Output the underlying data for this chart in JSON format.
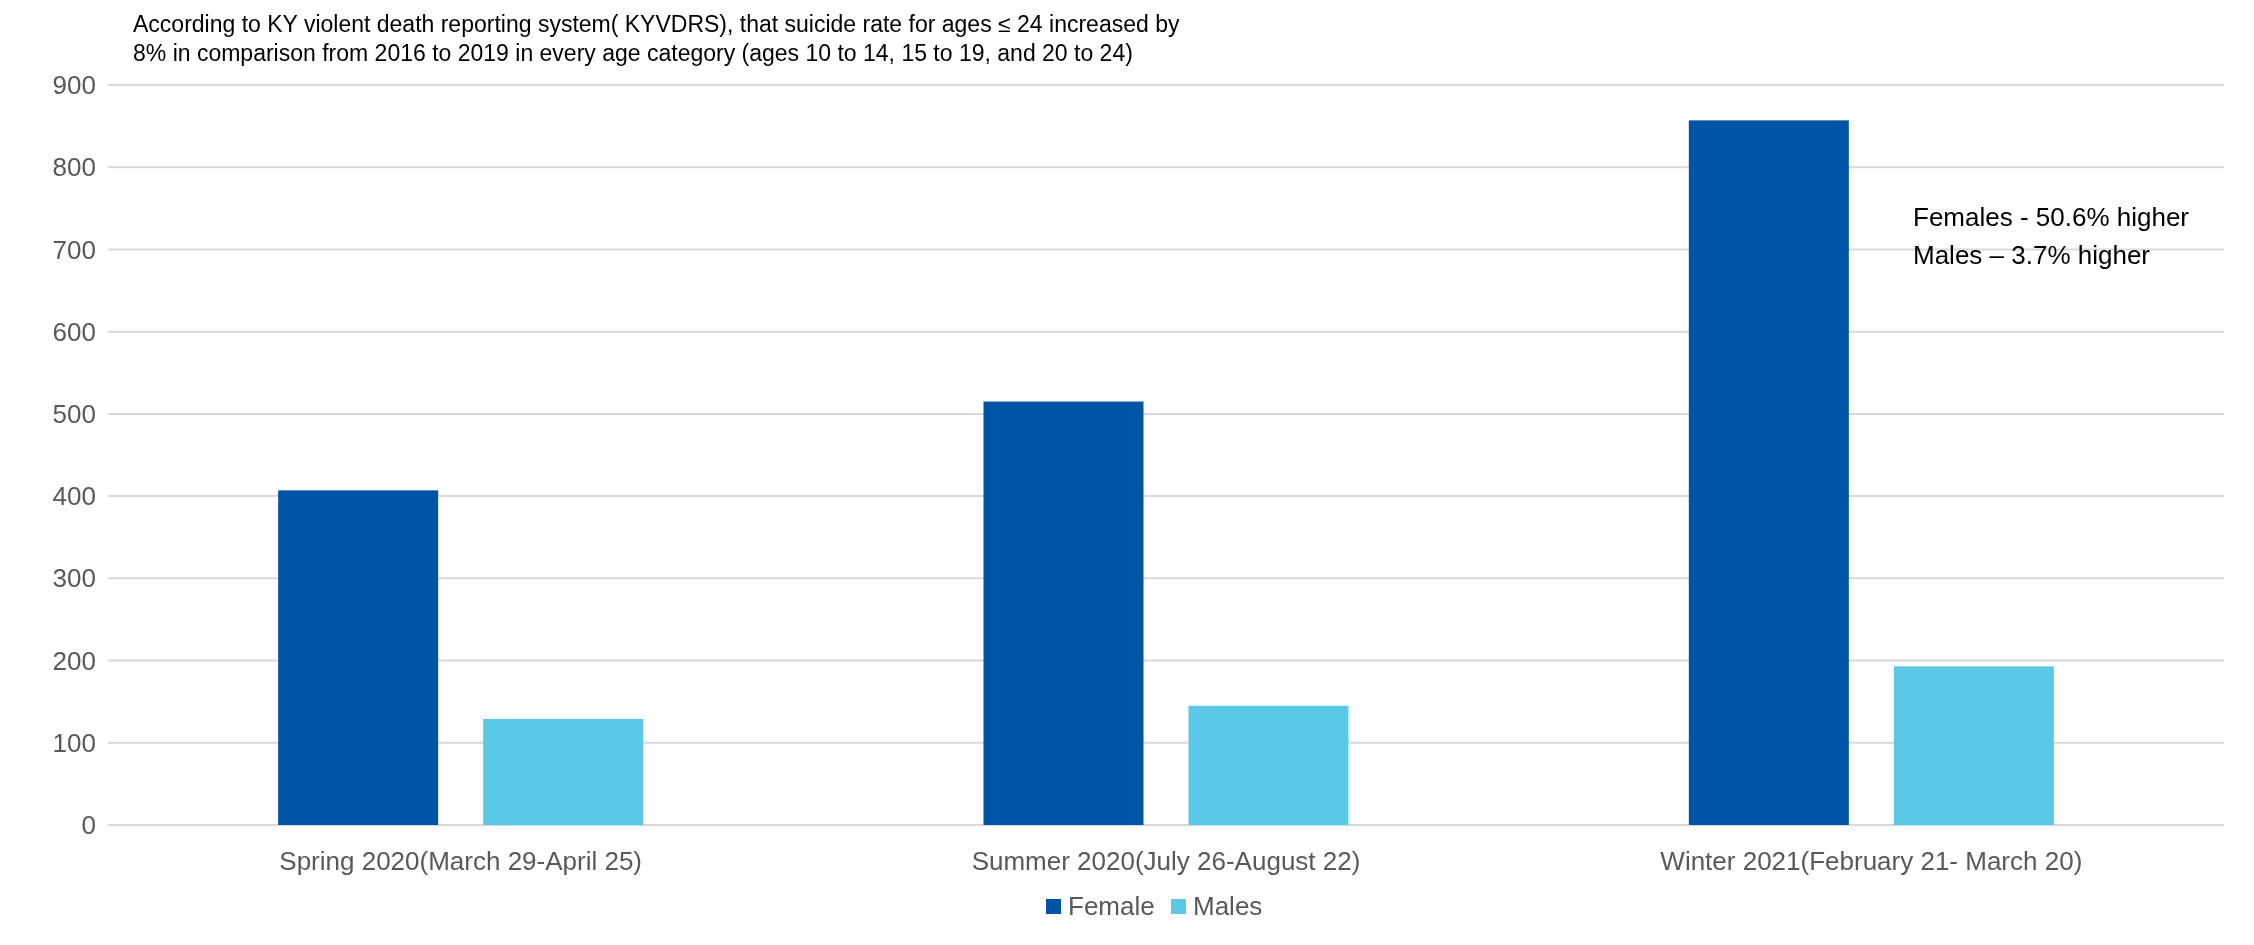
{
  "chart_data": {
    "type": "bar",
    "categories": [
      "Spring 2020(March 29-April 25)",
      "Summer 2020(July 26-August 22)",
      "Winter 2021(February 21- March 20)"
    ],
    "series": [
      {
        "name": "Female",
        "color": "#0054a6",
        "values": [
          407,
          515,
          857
        ]
      },
      {
        "name": "Males",
        "color": "#5bc8e8",
        "values": [
          129,
          145,
          193
        ]
      }
    ],
    "ylim": [
      0,
      900
    ],
    "yticks": [
      0,
      100,
      200,
      300,
      400,
      500,
      600,
      700,
      800,
      900
    ],
    "grid": "y",
    "legend": "bottom",
    "annotations": [
      "According to KY violent death reporting system( KYVDRS), that suicide rate for ages ≤ 24 increased by\n8%  in comparison from 2016 to 2019 in every age category (ages 10 to 14, 15 to 19, and 20 to 24)",
      "Females - 50.6% higher\nMales – 3.7% higher"
    ]
  }
}
